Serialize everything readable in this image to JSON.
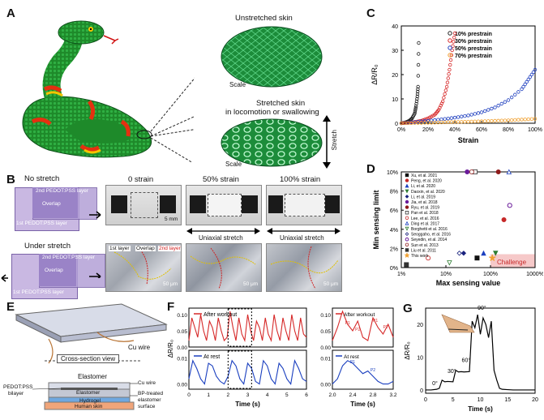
{
  "panels": {
    "A": {
      "label": "A",
      "unstretched": "Unstretched skin",
      "stretched_line1": "Stretched skin",
      "stretched_line2": "in locomotion or swallowing",
      "scale1": "Scale",
      "scale2": "Scale",
      "stretch": "Stretch"
    },
    "B": {
      "label": "B",
      "no_stretch": "No stretch",
      "under_stretch": "Under stretch",
      "layer2_top": "2nd PEDOT:PSS layer",
      "overlap_top": "Overlap",
      "layer1_top": "1st PEDOT:PSS layer",
      "layer2_bot": "2nd PEDOT:PSS layer",
      "overlap_bot": "Overlap",
      "layer1_bot": "1st PEDOT:PSS layer",
      "strain0": "0 strain",
      "strain50": "50% strain",
      "strain100": "100% strain",
      "uniaxial1": "Uniaxial stretch",
      "uniaxial2": "Uniaxial stretch",
      "micro_layer1": "1st layer",
      "micro_overlap": "Overlap",
      "micro_layer2": "2nd layer",
      "scale_5mm": "5 mm",
      "scale_50um_1": "50 μm",
      "scale_50um_2": "50 μm",
      "scale_50um_3": "50 μm"
    },
    "C": {
      "label": "C",
      "ylabel": "ΔR/R₀",
      "xlabel": "Strain",
      "yticks": [
        "0",
        "10",
        "20",
        "30",
        "40"
      ],
      "xticks": [
        "0%",
        "20%",
        "40%",
        "60%",
        "80%",
        "100%"
      ],
      "legend": [
        "10% prestrain",
        "30% prestrain",
        "50% prestrain",
        "70% prestrain"
      ]
    },
    "D": {
      "label": "D",
      "ylabel": "Min sensing limit",
      "xlabel": "Max sensing value",
      "yticks": [
        "0%",
        "2%",
        "4%",
        "6%",
        "8%",
        "10%"
      ],
      "xticks": [
        "1%",
        "10%",
        "100%",
        "1000%"
      ],
      "challenge": "Challenge",
      "legend": [
        "Xu, et al. 2021",
        "Peng, et al. 2020",
        "Li, et al. 2020",
        "Daoxin, et al. 2020",
        "Li, et al. 2019",
        "Jia, et al. 2018",
        "Ryu, et al. 2019",
        "Pan et al. 2018",
        "Lee, et al. 2016",
        "Ding et al. 2017",
        "Borghetti et al. 2016",
        "Seoggaho, et al. 2016",
        "Seyedin, et al. 2014",
        "Sun et al. 2013",
        "Liu et al. 2011",
        "This work"
      ]
    },
    "E": {
      "label": "E",
      "cross_section": "Cross-section view",
      "cu_wire_top": "Cu wire",
      "elastomer_top": "Elastomer",
      "cu_wire_side": "Cu wire",
      "pedot_line1": "PEDOT:PSS",
      "pedot_line2": "bilayer",
      "elastomer_mid": "Elastomer",
      "bp_line1": "BP-treated",
      "bp_line2": "elastomer",
      "bp_line3": "surface",
      "hydrogel": "Hydrogel",
      "human_skin": "Human skin"
    },
    "F": {
      "label": "F",
      "after_workout": "After workout",
      "at_rest": "At rest",
      "after_workout_zoom": "After workout",
      "at_rest_zoom": "At rest",
      "ylabel": "ΔR/R₀",
      "xlabel": "Time (s)",
      "xlabel_zoom": "Time (s)",
      "yticks_top": [
        "0.10",
        "0.05",
        "0.00"
      ],
      "yticks_bot": [
        "0.01",
        "0.00"
      ],
      "xticks": [
        "0",
        "1",
        "2",
        "3",
        "4",
        "5",
        "6"
      ],
      "xticks_zoom": [
        "2.0",
        "2.4",
        "2.8",
        "3.2"
      ],
      "p1": "P1",
      "p2": "P2",
      "p1b": "P1",
      "p2b": "P2",
      "p1c": "P1",
      "p2c": "P2"
    },
    "G": {
      "label": "G",
      "ylabel": "ΔR/R₀",
      "xlabel": "Time (s)",
      "yticks": [
        "0",
        "10",
        "20"
      ],
      "xticks": [
        "0",
        "5",
        "10",
        "15",
        "20"
      ],
      "angles": [
        "0°",
        "30°",
        "60°",
        "90°"
      ]
    }
  },
  "chart_data": [
    {
      "type": "scatter",
      "panel": "C",
      "xlabel": "Strain",
      "ylabel": "ΔR/R₀",
      "xlim": [
        0,
        100
      ],
      "ylim": [
        0,
        40
      ],
      "series": [
        {
          "name": "10% prestrain",
          "color": "#222222",
          "x": [
            0,
            2,
            4,
            6,
            8,
            10,
            11,
            12,
            12.5,
            13
          ],
          "y": [
            0,
            0.2,
            0.5,
            1,
            2,
            4,
            7,
            11,
            15,
            33
          ]
        },
        {
          "name": "30% prestrain",
          "color": "#d62728",
          "x": [
            0,
            5,
            10,
            15,
            20,
            25,
            28,
            31,
            34,
            36,
            38,
            40
          ],
          "y": [
            0,
            0.2,
            0.5,
            1,
            2,
            3.5,
            5.5,
            9,
            15,
            22,
            30,
            37
          ]
        },
        {
          "name": "50% prestrain",
          "color": "#1f3fbf",
          "x": [
            0,
            10,
            20,
            30,
            40,
            50,
            60,
            70,
            80,
            90,
            95,
            100
          ],
          "y": [
            0,
            0.5,
            1,
            1.6,
            2.3,
            3.2,
            4.5,
            6.5,
            9.5,
            14,
            18,
            22
          ]
        },
        {
          "name": "70% prestrain",
          "color": "#f0a030",
          "x": [
            0,
            10,
            20,
            30,
            40,
            50,
            60,
            70,
            80,
            90,
            100
          ],
          "y": [
            0,
            0.1,
            0.2,
            0.35,
            0.5,
            0.65,
            0.8,
            1,
            1.2,
            1.5,
            1.8
          ]
        }
      ]
    },
    {
      "type": "scatter",
      "panel": "D",
      "xlabel": "Max sensing value",
      "ylabel": "Min sensing limit",
      "xscale": "log",
      "xlim": [
        1,
        1000
      ],
      "ylim": [
        0,
        10
      ],
      "points": [
        {
          "name": "Xu, et al. 2021",
          "x": 50,
          "y": 1,
          "color": "#111111",
          "marker": "square"
        },
        {
          "name": "Peng, et al. 2020",
          "x": 200,
          "y": 5,
          "color": "#c62828",
          "marker": "circle"
        },
        {
          "name": "Li, et al. 2020",
          "x": 70,
          "y": 1.5,
          "color": "#1a3fbf",
          "marker": "triangle"
        },
        {
          "name": "Daoxin, et al. 2020",
          "x": 130,
          "y": 1.5,
          "color": "#2e7d32",
          "marker": "tri-down"
        },
        {
          "name": "Li, et al. 2019",
          "x": 25,
          "y": 1.5,
          "color": "#1a237e",
          "marker": "diamond"
        },
        {
          "name": "Jia, et al. 2018",
          "x": 30,
          "y": 10,
          "color": "#6a1b9a",
          "marker": "circle"
        },
        {
          "name": "Ryu, et al. 2019",
          "x": 150,
          "y": 10,
          "color": "#8e1b1b",
          "marker": "circle"
        },
        {
          "name": "Pan et al. 2018",
          "x": 45,
          "y": 10,
          "color": "#333333",
          "marker": "square-open"
        },
        {
          "name": "Lee, et al. 2016",
          "x": 4,
          "y": 1,
          "color": "#c62828",
          "marker": "circle-open"
        },
        {
          "name": "Ding et al. 2017",
          "x": 260,
          "y": 10,
          "color": "#1a3fbf",
          "marker": "triangle-open"
        },
        {
          "name": "Borghetti et al. 2016",
          "x": 12,
          "y": 0.5,
          "color": "#2e7d32",
          "marker": "tri-down-open"
        },
        {
          "name": "Seoggaho, et al. 2016",
          "x": 20,
          "y": 1.5,
          "color": "#1a237e",
          "marker": "diamond-open"
        },
        {
          "name": "Seyedin, et al. 2014",
          "x": 270,
          "y": 6.5,
          "color": "#6a1b9a",
          "marker": "hex-open"
        },
        {
          "name": "Sun et al. 2013",
          "x": 38,
          "y": 10,
          "color": "#8e1b1b",
          "marker": "circle-open"
        },
        {
          "name": "Liu et al. 2011",
          "x": 1.3,
          "y": 0.3,
          "color": "#333333",
          "marker": "square-x"
        },
        {
          "name": "This work",
          "x": 110,
          "y": 1,
          "color": "#f0a030",
          "marker": "star"
        }
      ]
    },
    {
      "type": "line",
      "panel": "F-top",
      "series_name": "After workout",
      "xlim": [
        0,
        6
      ],
      "ylim": [
        0,
        0.12
      ],
      "x": [
        0,
        0.15,
        0.3,
        0.45,
        0.6,
        0.75,
        0.9,
        1.05,
        1.2,
        1.35,
        1.5,
        1.65,
        1.8,
        1.95,
        2.1,
        2.25,
        2.4,
        2.55,
        2.7,
        2.85,
        3.0,
        3.15,
        3.3,
        3.45,
        3.6,
        3.75,
        3.9,
        4.05,
        4.2,
        4.35,
        4.5,
        4.65,
        4.8,
        4.95,
        5.1,
        5.25,
        5.4,
        5.55,
        5.7,
        5.85,
        6.0
      ],
      "y": [
        0.02,
        0.09,
        0.06,
        0.03,
        0.1,
        0.05,
        0.02,
        0.08,
        0.06,
        0.02,
        0.09,
        0.05,
        0.02,
        0.03,
        0.11,
        0.06,
        0.02,
        0.09,
        0.04,
        0.02,
        0.1,
        0.05,
        0.02,
        0.08,
        0.06,
        0.02,
        0.09,
        0.04,
        0.02,
        0.1,
        0.05,
        0.02,
        0.09,
        0.05,
        0.02,
        0.1,
        0.05,
        0.02,
        0.09,
        0.04,
        0.03
      ]
    },
    {
      "type": "line",
      "panel": "F-bottom",
      "series_name": "At rest",
      "xlim": [
        0,
        6
      ],
      "ylim": [
        -0.002,
        0.013
      ],
      "x": [
        0,
        0.2,
        0.4,
        0.6,
        0.8,
        1.0,
        1.2,
        1.4,
        1.6,
        1.8,
        2.0,
        2.2,
        2.4,
        2.6,
        2.8,
        3.0,
        3.2,
        3.4,
        3.6,
        3.8,
        4.0,
        4.2,
        4.4,
        4.6,
        4.8,
        5.0,
        5.2,
        5.4,
        5.6,
        5.8,
        6.0
      ],
      "y": [
        0.002,
        0.009,
        0.006,
        0.002,
        0.0,
        0.008,
        0.007,
        0.003,
        0.001,
        0.0,
        0.003,
        0.009,
        0.007,
        0.002,
        0.0,
        0.008,
        0.006,
        0.001,
        0.0,
        0.009,
        0.007,
        0.002,
        0.0,
        0.008,
        0.006,
        0.002,
        0.0,
        0.009,
        0.006,
        0.002,
        0.001
      ]
    },
    {
      "type": "line",
      "panel": "G",
      "xlabel": "Time (s)",
      "ylabel": "ΔR/R₀",
      "xlim": [
        0,
        20
      ],
      "ylim": [
        -1,
        25
      ],
      "x": [
        0,
        1,
        2,
        2.5,
        3,
        3.5,
        4,
        5,
        5.5,
        6,
        6.5,
        7,
        8,
        8.5,
        9,
        9.5,
        10,
        10.5,
        11,
        11.5,
        12,
        12.5,
        13,
        13.5,
        14,
        15,
        16,
        17,
        18,
        19,
        20
      ],
      "y": [
        0,
        0,
        0.2,
        0.5,
        3,
        2.5,
        2.6,
        2.5,
        6,
        5.5,
        5.6,
        5.5,
        5.6,
        21,
        19,
        23,
        17,
        22,
        20,
        16,
        21,
        6,
        3,
        0.5,
        0.2,
        0.1,
        0,
        0,
        0,
        0,
        0
      ]
    }
  ]
}
